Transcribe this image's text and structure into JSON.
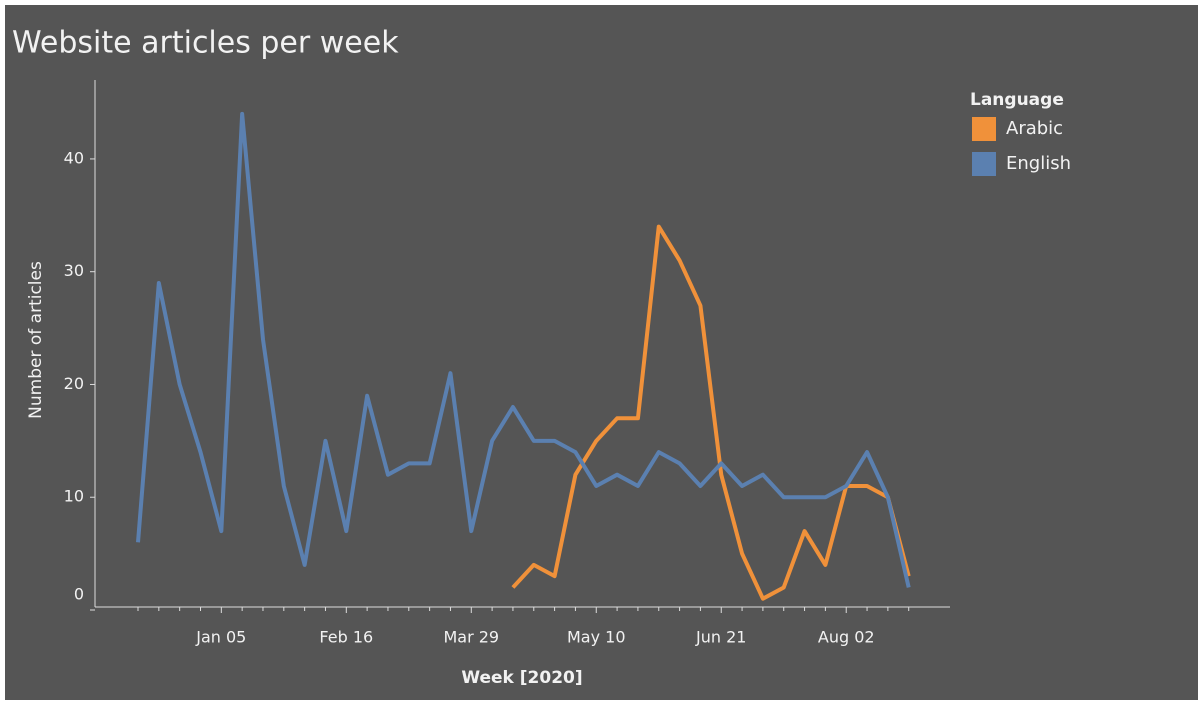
{
  "chart_data": {
    "type": "line",
    "title": "Website articles per week",
    "x_label": "Week [2020]",
    "y_label": "Number of articles",
    "legend_title": "Language",
    "legend_position": "top-right",
    "categories": [
      null,
      null,
      null,
      null,
      "Jan 05",
      null,
      null,
      null,
      null,
      null,
      "Feb 16",
      null,
      null,
      null,
      null,
      null,
      "Mar 29",
      null,
      null,
      null,
      null,
      null,
      "May 10",
      null,
      null,
      null,
      null,
      null,
      "Jun 21",
      null,
      null,
      null,
      null,
      null,
      "Aug 02",
      null,
      null,
      null
    ],
    "series": [
      {
        "name": "Arabic",
        "color": "#f0913a",
        "values": [
          null,
          null,
          null,
          null,
          null,
          null,
          null,
          null,
          null,
          null,
          null,
          null,
          null,
          null,
          null,
          null,
          null,
          null,
          2,
          4,
          3,
          12,
          15,
          17,
          17,
          34,
          31,
          27,
          12,
          5,
          1,
          2,
          7,
          4,
          11,
          11,
          10,
          3
        ]
      },
      {
        "name": "English",
        "color": "#5b80b0",
        "values": [
          6,
          29,
          20,
          14,
          7,
          44,
          24,
          11,
          4,
          15,
          7,
          19,
          12,
          13,
          13,
          21,
          7,
          15,
          18,
          15,
          15,
          14,
          11,
          12,
          11,
          14,
          13,
          11,
          13,
          11,
          12,
          10,
          10,
          10,
          11,
          14,
          10,
          2
        ]
      }
    ],
    "ylim": [
      0,
      47
    ],
    "yticks": [
      0,
      10,
      20,
      30,
      40
    ],
    "grid": false
  }
}
